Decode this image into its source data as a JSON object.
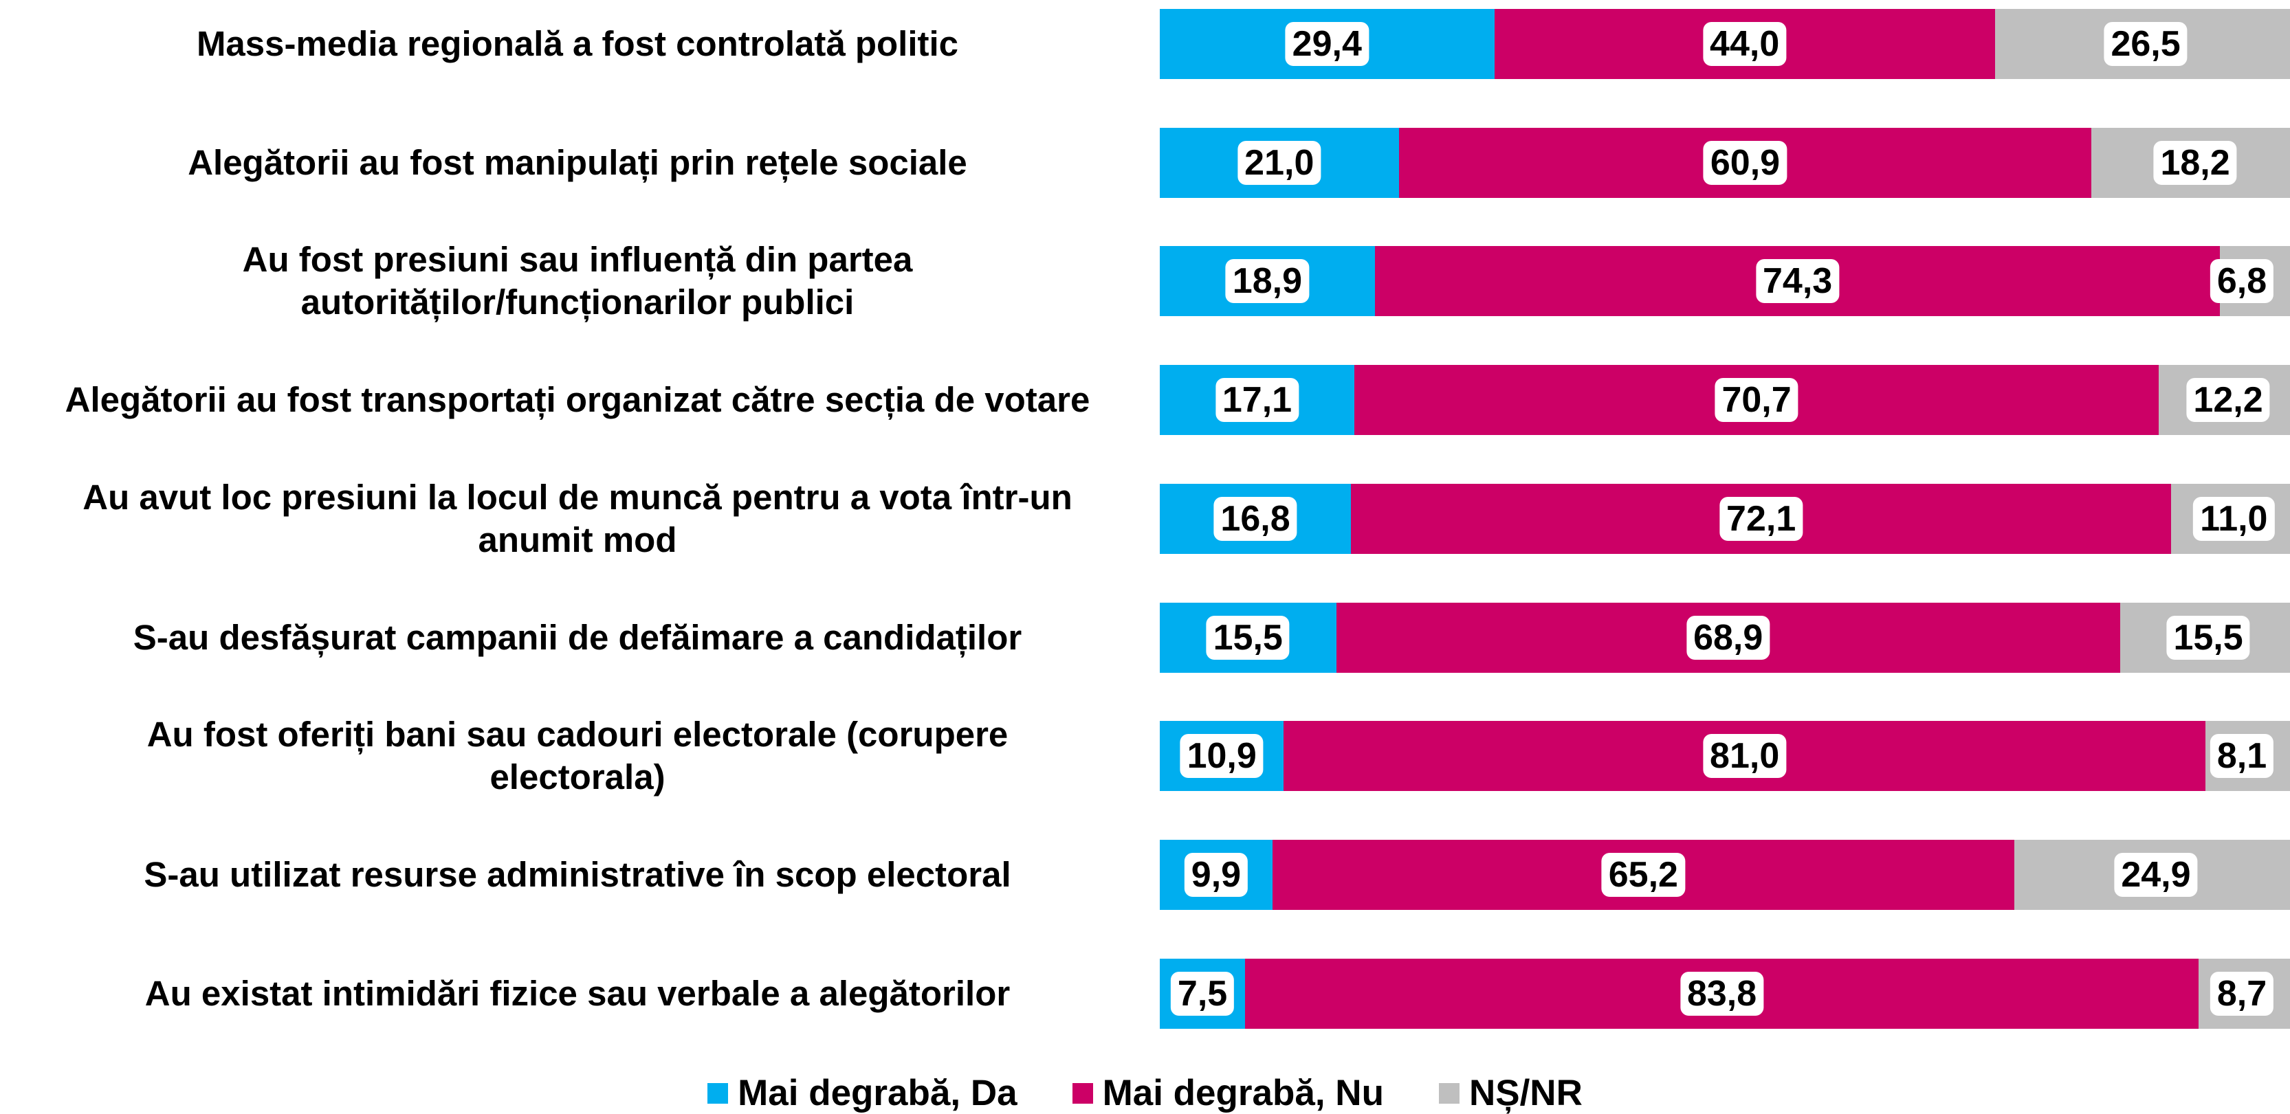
{
  "chart_data": {
    "type": "bar",
    "orientation": "horizontal",
    "stacked": true,
    "categories": [
      "Mass-media regională a fost controlată politic",
      "Alegătorii au fost manipulați prin rețele sociale",
      "Au fost presiuni sau influență din partea\nautorităților/funcționarilor publici",
      "Alegătorii au fost transportați organizat către secția de votare",
      "Au avut loc presiuni la locul de muncă pentru a vota într-un\nanumit mod",
      "S-au desfășurat campanii de defăimare a candidaților",
      "Au fost oferiți bani sau cadouri electorale (corupere\nelectorala)",
      "S-au utilizat resurse administrative în scop electoral",
      "Au existat intimidări fizice sau verbale a alegătorilor"
    ],
    "xlim": [
      0,
      100
    ],
    "series": [
      {
        "name": "Mai degrabă, Da",
        "color": "#00AEEF",
        "values": [
          29.4,
          21.0,
          18.9,
          17.1,
          16.8,
          15.5,
          10.9,
          9.9,
          7.5
        ],
        "value_labels": [
          "29,4",
          "21,0",
          "18,9",
          "17,1",
          "16,8",
          "15,5",
          "10,9",
          "9,9",
          "7,5"
        ]
      },
      {
        "name": "Mai degrabă, Nu",
        "color": "#CC0066",
        "values": [
          44.0,
          60.9,
          74.3,
          70.7,
          72.1,
          68.9,
          81.0,
          65.2,
          83.8
        ],
        "value_labels": [
          "44,0",
          "60,9",
          "74,3",
          "70,7",
          "72,1",
          "68,9",
          "81,0",
          "65,2",
          "83,8"
        ]
      },
      {
        "name": "NȘ/NR",
        "color": "#BFBFBF",
        "values": [
          26.5,
          18.2,
          6.8,
          12.2,
          11.0,
          15.5,
          8.1,
          24.9,
          8.7
        ],
        "value_labels": [
          "26,5",
          "18,2",
          "6,8",
          "12,2",
          "11,0",
          "15,5",
          "8,1",
          "24,9",
          "8,7"
        ]
      }
    ],
    "legend": "bottom"
  }
}
